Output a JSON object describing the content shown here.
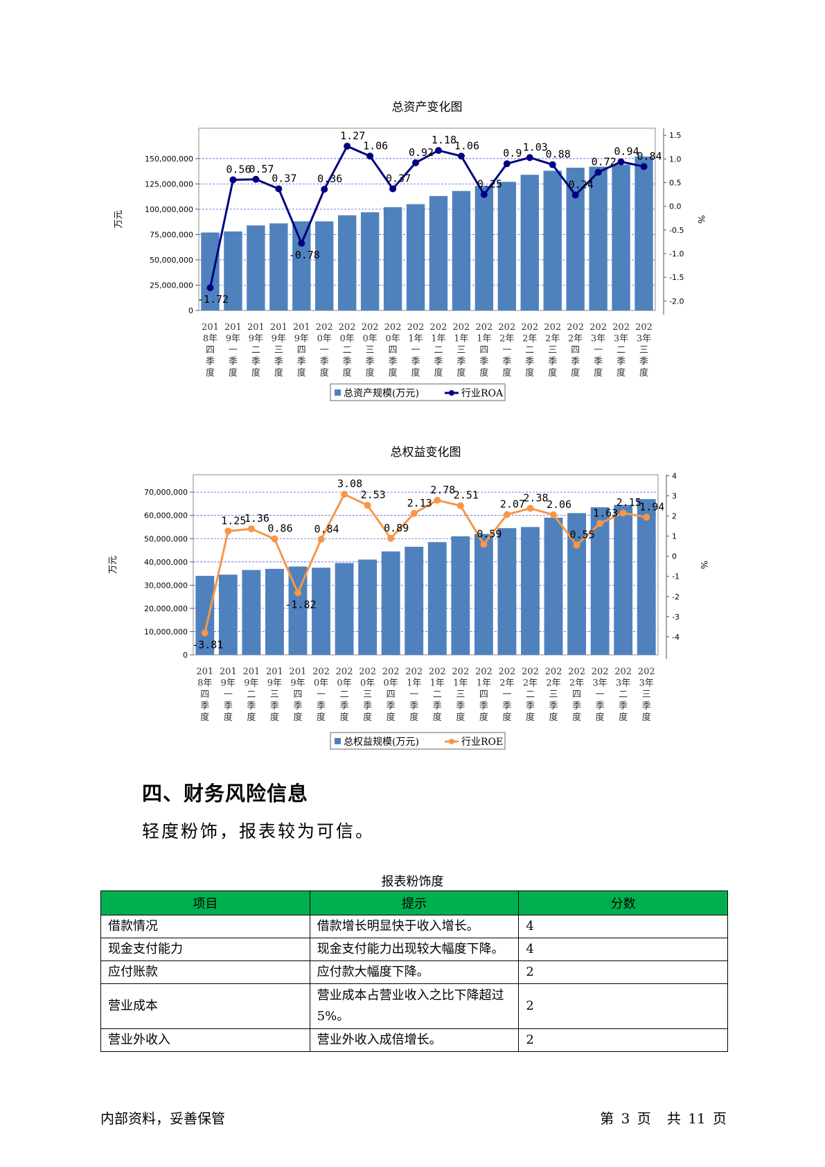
{
  "charts": [
    {
      "id": "chart1",
      "title": "总资产变化图",
      "ylabel_left": "万元",
      "ylabel_right": "%",
      "left_ticks": [
        "0",
        "25,000,000",
        "50,000,000",
        "75,000,000",
        "100,000,000",
        "125,000,000",
        "150,000,000"
      ],
      "left_range": [
        0,
        180000000
      ],
      "left_step": 25000000,
      "right_ticks": [
        "-2.0",
        "-1.5",
        "-1.0",
        "-0.5",
        "0.0",
        "0.5",
        "1.0",
        "1.5"
      ],
      "right_range": [
        -2.2,
        1.65
      ],
      "bar_color": "#4f81bd",
      "line_color": "#000080",
      "legend": [
        "总资产规模(万元)",
        "行业ROA"
      ]
    },
    {
      "id": "chart2",
      "title": "总权益变化图",
      "ylabel_left": "万元",
      "ylabel_right": "%",
      "left_ticks": [
        "0",
        "10,000,000",
        "20,000,000",
        "30,000,000",
        "40,000,000",
        "50,000,000",
        "60,000,000",
        "70,000,000"
      ],
      "left_range": [
        0,
        77500000
      ],
      "left_step": 10000000,
      "right_ticks": [
        "-4",
        "-3",
        "-2",
        "-1",
        "0",
        "1",
        "2",
        "3",
        "4"
      ],
      "right_range": [
        -4.9,
        4.05
      ],
      "bar_color": "#4f81bd",
      "line_color": "#f79646",
      "legend": [
        "总权益规模(万元)",
        "行业ROE"
      ]
    }
  ],
  "chart_data": [
    {
      "type": "bar",
      "title": "总资产变化图",
      "categories": [
        "2018年四季度",
        "2019年一季度",
        "2019年二季度",
        "2019年三季度",
        "2019年四季度",
        "2020年一季度",
        "2020年二季度",
        "2020年三季度",
        "2020年四季度",
        "2021年一季度",
        "2021年二季度",
        "2021年三季度",
        "2021年四季度",
        "2022年一季度",
        "2022年二季度",
        "2022年三季度",
        "2022年四季度",
        "2023年一季度",
        "2023年二季度",
        "2023年三季度"
      ],
      "category_lines": [
        [
          "201",
          "8年",
          "四",
          "季",
          "度"
        ],
        [
          "201",
          "9年",
          "一",
          "季",
          "度"
        ],
        [
          "201",
          "9年",
          "二",
          "季",
          "度"
        ],
        [
          "201",
          "9年",
          "三",
          "季",
          "度"
        ],
        [
          "201",
          "9年",
          "四",
          "季",
          "度"
        ],
        [
          "202",
          "0年",
          "一",
          "季",
          "度"
        ],
        [
          "202",
          "0年",
          "二",
          "季",
          "度"
        ],
        [
          "202",
          "0年",
          "三",
          "季",
          "度"
        ],
        [
          "202",
          "0年",
          "四",
          "季",
          "度"
        ],
        [
          "202",
          "1年",
          "一",
          "季",
          "度"
        ],
        [
          "202",
          "1年",
          "二",
          "季",
          "度"
        ],
        [
          "202",
          "1年",
          "三",
          "季",
          "度"
        ],
        [
          "202",
          "1年",
          "四",
          "季",
          "度"
        ],
        [
          "202",
          "2年",
          "一",
          "季",
          "度"
        ],
        [
          "202",
          "2年",
          "二",
          "季",
          "度"
        ],
        [
          "202",
          "2年",
          "三",
          "季",
          "度"
        ],
        [
          "202",
          "2年",
          "四",
          "季",
          "度"
        ],
        [
          "202",
          "3年",
          "一",
          "季",
          "度"
        ],
        [
          "202",
          "3年",
          "二",
          "季",
          "度"
        ],
        [
          "202",
          "3年",
          "三",
          "季",
          "度"
        ]
      ],
      "series": [
        {
          "name": "总资产规模(万元)",
          "axis": "left",
          "values": [
            77000000,
            78000000,
            84000000,
            86000000,
            88000000,
            88000000,
            94000000,
            97000000,
            102000000,
            105000000,
            113000000,
            118000000,
            123000000,
            127000000,
            134000000,
            138000000,
            141000000,
            142000000,
            144000000,
            152000000
          ]
        },
        {
          "name": "行业ROA",
          "axis": "right",
          "values": [
            -1.72,
            0.56,
            0.57,
            0.37,
            -0.78,
            0.36,
            1.27,
            1.06,
            0.37,
            0.92,
            1.18,
            1.06,
            0.25,
            0.9,
            1.03,
            0.88,
            0.24,
            0.72,
            0.94,
            0.84
          ]
        }
      ],
      "line_labels": [
        "-1.72",
        "0.56",
        "0.57",
        "0.37",
        "-0.78",
        "0.36",
        "1.27",
        "1.06",
        "0.37",
        "0.92",
        "1.18",
        "1.06",
        "0.25",
        "0.9",
        "1.03",
        "0.88",
        "0.24",
        "0.72",
        "0.94",
        "0.84"
      ]
    },
    {
      "type": "bar",
      "title": "总权益变化图",
      "categories": [
        "2018年四季度",
        "2019年一季度",
        "2019年二季度",
        "2019年三季度",
        "2019年四季度",
        "2020年一季度",
        "2020年二季度",
        "2020年三季度",
        "2020年四季度",
        "2021年一季度",
        "2021年二季度",
        "2021年三季度",
        "2021年四季度",
        "2022年一季度",
        "2022年二季度",
        "2022年三季度",
        "2022年四季度",
        "2023年一季度",
        "2023年二季度",
        "2023年三季度"
      ],
      "category_lines": [
        [
          "201",
          "8年",
          "四",
          "季",
          "度"
        ],
        [
          "201",
          "9年",
          "一",
          "季",
          "度"
        ],
        [
          "201",
          "9年",
          "二",
          "季",
          "度"
        ],
        [
          "201",
          "9年",
          "三",
          "季",
          "度"
        ],
        [
          "201",
          "9年",
          "四",
          "季",
          "度"
        ],
        [
          "202",
          "0年",
          "一",
          "季",
          "度"
        ],
        [
          "202",
          "0年",
          "二",
          "季",
          "度"
        ],
        [
          "202",
          "0年",
          "三",
          "季",
          "度"
        ],
        [
          "202",
          "0年",
          "四",
          "季",
          "度"
        ],
        [
          "202",
          "1年",
          "一",
          "季",
          "度"
        ],
        [
          "202",
          "1年",
          "二",
          "季",
          "度"
        ],
        [
          "202",
          "1年",
          "三",
          "季",
          "度"
        ],
        [
          "202",
          "1年",
          "四",
          "季",
          "度"
        ],
        [
          "202",
          "2年",
          "一",
          "季",
          "度"
        ],
        [
          "202",
          "2年",
          "二",
          "季",
          "度"
        ],
        [
          "202",
          "2年",
          "三",
          "季",
          "度"
        ],
        [
          "202",
          "2年",
          "四",
          "季",
          "度"
        ],
        [
          "202",
          "3年",
          "一",
          "季",
          "度"
        ],
        [
          "202",
          "3年",
          "二",
          "季",
          "度"
        ],
        [
          "202",
          "3年",
          "三",
          "季",
          "度"
        ]
      ],
      "series": [
        {
          "name": "总权益规模(万元)",
          "axis": "left",
          "values": [
            34000000,
            34500000,
            36500000,
            37000000,
            38000000,
            37500000,
            39500000,
            41000000,
            44500000,
            46500000,
            48500000,
            51000000,
            52000000,
            54500000,
            55000000,
            59000000,
            61000000,
            63500000,
            64500000,
            67000000
          ]
        },
        {
          "name": "行业ROE",
          "axis": "right",
          "values": [
            -3.81,
            1.25,
            1.36,
            0.86,
            -1.82,
            0.84,
            3.08,
            2.53,
            0.89,
            2.13,
            2.78,
            2.51,
            0.59,
            2.07,
            2.38,
            2.06,
            0.55,
            1.63,
            2.15,
            1.94
          ]
        }
      ],
      "line_labels": [
        "-3.81",
        "1.25",
        "1.36",
        "0.86",
        "-1.82",
        "0.84",
        "3.08",
        "2.53",
        "0.89",
        "2.13",
        "2.78",
        "2.51",
        "0.59",
        "2.07",
        "2.38",
        "2.06",
        "0.55",
        "1.63",
        "2.15",
        "1.94"
      ]
    }
  ],
  "section": {
    "heading": "四、财务风险信息",
    "paragraph": "轻度粉饰，报表较为可信。"
  },
  "table": {
    "caption": "报表粉饰度",
    "headers": [
      "项目",
      "提示",
      "分数"
    ],
    "header_color": "#00b050",
    "rows": [
      {
        "item": "借款情况",
        "hint": "借款增长明显快于收入增长。",
        "score": "4"
      },
      {
        "item": "现金支付能力",
        "hint": "现金支付能力出现较大幅度下降。",
        "score": "4"
      },
      {
        "item": "应付账款",
        "hint": "应付款大幅度下降。",
        "score": "2"
      },
      {
        "item": "营业成本",
        "hint": "营业成本占营业收入之比下降超过5%。",
        "score": "2"
      },
      {
        "item": "营业外收入",
        "hint": "营业外收入成倍增长。",
        "score": "2"
      }
    ]
  },
  "footer": {
    "left": "内部资料，妥善保管",
    "page_prefix": "第",
    "page_number": "3",
    "page_suffix": "页",
    "total_prefix": "共",
    "total_pages": "11",
    "total_suffix": "页"
  }
}
